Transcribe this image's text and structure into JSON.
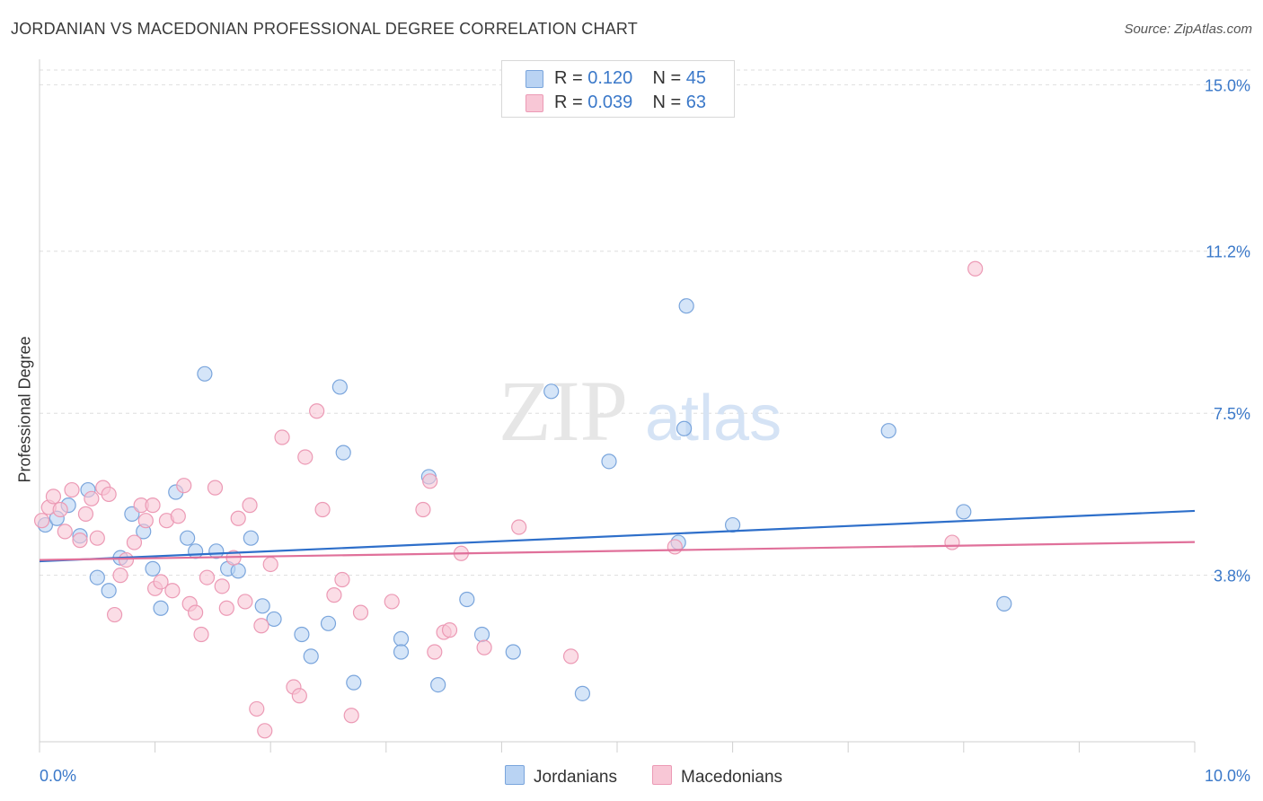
{
  "header": {
    "title": "JORDANIAN VS MACEDONIAN PROFESSIONAL DEGREE CORRELATION CHART",
    "source": "Source: ZipAtlas.com"
  },
  "watermark": {
    "zip": "ZIP",
    "atlas": "atlas"
  },
  "legend": {
    "rows": [
      {
        "r_label": "R =",
        "r_value": "0.120",
        "n_label": "N =",
        "n_value": "45"
      },
      {
        "r_label": "R =",
        "r_value": "0.039",
        "n_label": "N =",
        "n_value": "63"
      }
    ]
  },
  "bottom_legend": {
    "items": [
      "Jordanians",
      "Macedonians"
    ]
  },
  "colors": {
    "jordanian_fill": "#b9d3f3",
    "jordanian_stroke": "#7aa5dc",
    "jordanian_line": "#2e6fca",
    "macedonian_fill": "#f8c7d6",
    "macedonian_stroke": "#ec9ab5",
    "macedonian_line": "#e0709a",
    "tick_label": "#3a78c9",
    "grid": "#dedede"
  },
  "chart_data": {
    "type": "scatter",
    "title": "JORDANIAN VS MACEDONIAN PROFESSIONAL DEGREE CORRELATION CHART",
    "xlabel": "",
    "ylabel": "Professional Degree",
    "xlim": [
      0,
      10
    ],
    "ylim": [
      0,
      15.5
    ],
    "x_tick_labels": [
      "0.0%",
      "10.0%"
    ],
    "y_ticks": [
      3.8,
      7.5,
      11.2,
      15.0
    ],
    "y_tick_labels": [
      "3.8%",
      "7.5%",
      "11.2%",
      "15.0%"
    ],
    "grid": true,
    "legend_position": "top-center",
    "series": [
      {
        "name": "Jordanians",
        "r": 0.12,
        "n": 45,
        "trend": {
          "x": [
            0,
            10
          ],
          "y": [
            4.12,
            5.27
          ]
        },
        "points": [
          [
            0.05,
            4.95
          ],
          [
            0.15,
            5.1
          ],
          [
            0.25,
            5.4
          ],
          [
            0.35,
            4.7
          ],
          [
            0.42,
            5.75
          ],
          [
            0.5,
            3.75
          ],
          [
            0.6,
            3.45
          ],
          [
            0.7,
            4.2
          ],
          [
            0.8,
            5.2
          ],
          [
            0.9,
            4.8
          ],
          [
            0.98,
            3.95
          ],
          [
            1.05,
            3.05
          ],
          [
            1.18,
            5.7
          ],
          [
            1.28,
            4.65
          ],
          [
            1.35,
            4.35
          ],
          [
            1.43,
            8.4
          ],
          [
            1.53,
            4.35
          ],
          [
            1.63,
            3.95
          ],
          [
            1.72,
            3.9
          ],
          [
            1.83,
            4.65
          ],
          [
            1.93,
            3.1
          ],
          [
            2.03,
            2.8
          ],
          [
            2.27,
            2.45
          ],
          [
            2.35,
            1.95
          ],
          [
            2.5,
            2.7
          ],
          [
            2.6,
            8.1
          ],
          [
            2.63,
            6.6
          ],
          [
            2.72,
            1.35
          ],
          [
            3.13,
            2.35
          ],
          [
            3.13,
            2.05
          ],
          [
            3.37,
            6.05
          ],
          [
            3.45,
            1.3
          ],
          [
            3.7,
            3.25
          ],
          [
            3.83,
            2.45
          ],
          [
            4.1,
            2.05
          ],
          [
            4.43,
            8.0
          ],
          [
            4.7,
            1.1
          ],
          [
            4.93,
            6.4
          ],
          [
            5.53,
            4.55
          ],
          [
            5.58,
            7.15
          ],
          [
            5.6,
            9.95
          ],
          [
            6.0,
            4.95
          ],
          [
            7.35,
            7.1
          ],
          [
            8.0,
            5.25
          ],
          [
            8.35,
            3.15
          ]
        ]
      },
      {
        "name": "Macedonians",
        "r": 0.039,
        "n": 63,
        "trend": {
          "x": [
            0,
            10
          ],
          "y": [
            4.15,
            4.56
          ]
        },
        "points": [
          [
            0.02,
            5.05
          ],
          [
            0.08,
            5.35
          ],
          [
            0.12,
            5.6
          ],
          [
            0.18,
            5.3
          ],
          [
            0.22,
            4.8
          ],
          [
            0.28,
            5.75
          ],
          [
            0.35,
            4.6
          ],
          [
            0.4,
            5.2
          ],
          [
            0.45,
            5.55
          ],
          [
            0.5,
            4.65
          ],
          [
            0.55,
            5.8
          ],
          [
            0.6,
            5.65
          ],
          [
            0.65,
            2.9
          ],
          [
            0.7,
            3.8
          ],
          [
            0.75,
            4.15
          ],
          [
            0.82,
            4.55
          ],
          [
            0.88,
            5.4
          ],
          [
            0.92,
            5.05
          ],
          [
            0.98,
            5.4
          ],
          [
            1.0,
            3.5
          ],
          [
            1.05,
            3.65
          ],
          [
            1.1,
            5.05
          ],
          [
            1.15,
            3.45
          ],
          [
            1.2,
            5.15
          ],
          [
            1.25,
            5.85
          ],
          [
            1.3,
            3.15
          ],
          [
            1.35,
            2.95
          ],
          [
            1.4,
            2.45
          ],
          [
            1.45,
            3.75
          ],
          [
            1.52,
            5.8
          ],
          [
            1.58,
            3.55
          ],
          [
            1.62,
            3.05
          ],
          [
            1.68,
            4.2
          ],
          [
            1.72,
            5.1
          ],
          [
            1.78,
            3.2
          ],
          [
            1.82,
            5.4
          ],
          [
            1.88,
            0.75
          ],
          [
            1.92,
            2.65
          ],
          [
            1.95,
            0.25
          ],
          [
            2.0,
            4.05
          ],
          [
            2.1,
            6.95
          ],
          [
            2.2,
            1.25
          ],
          [
            2.25,
            1.05
          ],
          [
            2.3,
            6.5
          ],
          [
            2.4,
            7.55
          ],
          [
            2.45,
            5.3
          ],
          [
            2.55,
            3.35
          ],
          [
            2.62,
            3.7
          ],
          [
            2.7,
            0.6
          ],
          [
            2.78,
            2.95
          ],
          [
            3.05,
            3.2
          ],
          [
            3.32,
            5.3
          ],
          [
            3.38,
            5.95
          ],
          [
            3.42,
            2.05
          ],
          [
            3.5,
            2.5
          ],
          [
            3.55,
            2.55
          ],
          [
            3.65,
            4.3
          ],
          [
            3.85,
            2.15
          ],
          [
            4.15,
            4.9
          ],
          [
            4.6,
            1.95
          ],
          [
            7.9,
            4.55
          ],
          [
            8.1,
            10.8
          ],
          [
            5.5,
            4.45
          ]
        ]
      }
    ]
  }
}
